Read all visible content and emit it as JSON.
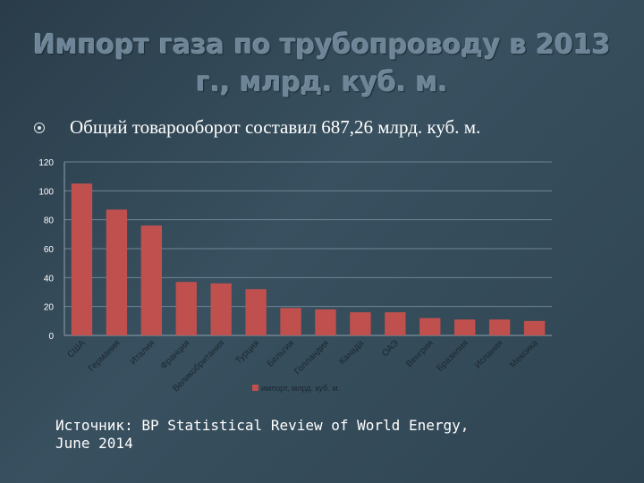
{
  "slide": {
    "title": "Импорт газа по трубопроводу в 2013 г., млрд. куб. м.",
    "bullet": "Общий товарооборот составил 687,26 млрд. куб. м.",
    "bullet_icon": "circle-bullet-icon",
    "source_line1": "Источник: BP Statistical Review of World Energy,",
    "source_line2": "June 2014"
  },
  "chart_data": {
    "type": "bar",
    "categories": [
      "США",
      "Германия",
      "Италия",
      "Франция",
      "Великобритания",
      "Турция",
      "Бельгия",
      "Голландия",
      "Канада",
      "ОАЭ",
      "Венгрия",
      "Бразилия",
      "Испания",
      "Мексика"
    ],
    "series": [
      {
        "name": "импорт, млрд. куб. м.",
        "color": "#c0504d",
        "values": [
          105,
          87,
          76,
          37,
          36,
          32,
          19,
          18,
          16,
          16,
          12,
          11,
          11,
          10
        ]
      }
    ],
    "yticks": [
      0,
      20,
      40,
      60,
      80,
      100,
      120
    ],
    "ylim": [
      0,
      120
    ],
    "grid": true,
    "legend_position": "bottom"
  }
}
